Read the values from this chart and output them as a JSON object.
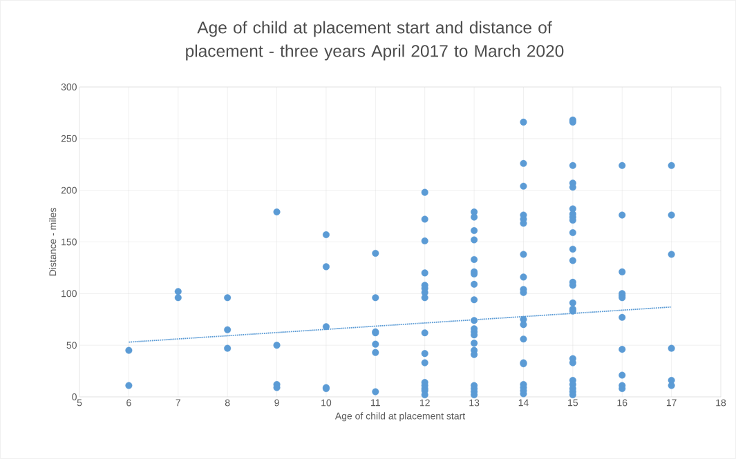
{
  "chart_data": {
    "type": "scatter",
    "title": "Age of child at placement start and distance of placement - three years April 2017 to March 2020",
    "xlabel": "Age  of child at placement start",
    "ylabel": "Distance - miles",
    "xlim": [
      5,
      18
    ],
    "xticks": [
      5,
      6,
      7,
      8,
      9,
      10,
      11,
      12,
      13,
      14,
      15,
      16,
      17,
      18
    ],
    "ylim": [
      0,
      300
    ],
    "yticks": [
      0,
      50,
      100,
      150,
      200,
      250,
      300
    ],
    "grid": true,
    "marker": "circle",
    "series": [
      {
        "color": "#5b9bd5",
        "x": [
          6,
          6,
          7,
          7,
          8,
          8,
          8,
          9,
          9,
          9,
          9,
          10,
          10,
          10,
          10,
          10,
          11,
          11,
          11,
          11,
          11,
          11,
          11,
          12,
          12,
          12,
          12,
          12,
          12,
          12,
          12,
          12,
          12,
          12,
          12,
          12,
          12,
          12,
          12,
          13,
          13,
          13,
          13,
          13,
          13,
          13,
          13,
          13,
          13,
          13,
          13,
          13,
          13,
          13,
          13,
          13,
          13,
          13,
          13,
          14,
          14,
          14,
          14,
          14,
          14,
          14,
          14,
          14,
          14,
          14,
          14,
          14,
          14,
          14,
          14,
          14,
          14,
          14,
          15,
          15,
          15,
          15,
          15,
          15,
          15,
          15,
          15,
          15,
          15,
          15,
          15,
          15,
          15,
          15,
          15,
          15,
          15,
          15,
          15,
          15,
          15,
          15,
          16,
          16,
          16,
          16,
          16,
          16,
          16,
          16,
          16,
          16,
          16,
          17,
          17,
          17,
          17,
          17,
          17
        ],
        "values": [
          45,
          11,
          102,
          96,
          96,
          65,
          47,
          179,
          50,
          12,
          9,
          157,
          126,
          68,
          9,
          8,
          139,
          96,
          63,
          62,
          51,
          43,
          5,
          198,
          172,
          151,
          120,
          108,
          105,
          101,
          96,
          62,
          42,
          33,
          14,
          11,
          8,
          6,
          2,
          179,
          174,
          161,
          152,
          133,
          121,
          119,
          109,
          94,
          74,
          66,
          63,
          60,
          52,
          45,
          41,
          11,
          8,
          5,
          2,
          266,
          226,
          204,
          176,
          172,
          168,
          138,
          116,
          104,
          101,
          75,
          70,
          56,
          33,
          32,
          12,
          9,
          6,
          3,
          268,
          266,
          224,
          207,
          203,
          182,
          177,
          174,
          171,
          159,
          143,
          132,
          111,
          108,
          91,
          85,
          83,
          37,
          33,
          16,
          12,
          8,
          5,
          2,
          224,
          176,
          121,
          100,
          98,
          96,
          77,
          46,
          21,
          11,
          8,
          224,
          176,
          138,
          47,
          16,
          11
        ]
      },
      {
        "type": "line",
        "color": "#5b9bd5",
        "line_style": "dotted",
        "marker": "none",
        "x": [
          6,
          17
        ],
        "values": [
          53,
          87
        ]
      }
    ]
  }
}
